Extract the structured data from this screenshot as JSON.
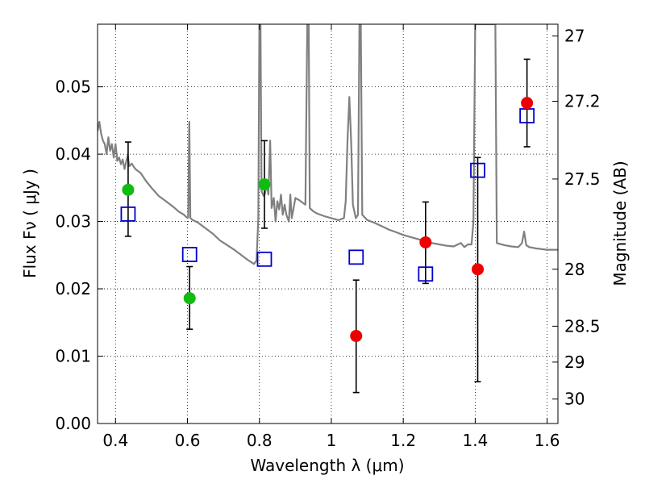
{
  "chart_data": {
    "type": "scatter",
    "title": "",
    "xlabel": "Wavelength  λ (μm)",
    "ylabel": "Flux  Fν  ( μJy )",
    "ylabel_right": "Magnitude (AB)",
    "xlim": [
      0.35,
      1.63
    ],
    "ylim": [
      0.0,
      0.0593
    ],
    "grid": true,
    "grid_style": "dotted",
    "x_ticks": [
      0.4,
      0.6,
      0.8,
      1.0,
      1.2,
      1.4,
      1.6
    ],
    "x_tick_labels": [
      "0.4",
      "0.6",
      "0.8",
      "1",
      "1.2",
      "1.4",
      "1.6"
    ],
    "y_ticks": [
      0.0,
      0.01,
      0.02,
      0.03,
      0.04,
      0.05
    ],
    "y_tick_labels": [
      "0.00",
      "0.01",
      "0.02",
      "0.03",
      "0.04",
      "0.05"
    ],
    "right_ticks": [
      {
        "label": "27",
        "flux": 0.05754
      },
      {
        "label": "27.2",
        "flux": 0.04786
      },
      {
        "label": "27.5",
        "flux": 0.03631
      },
      {
        "label": "28",
        "flux": 0.02291
      },
      {
        "label": "28.5",
        "flux": 0.01445
      },
      {
        "label": "29",
        "flux": 0.00912
      },
      {
        "label": "30",
        "flux": 0.00363
      }
    ],
    "series": [
      {
        "kind": "model-spectrum",
        "color": "#808080",
        "points": [
          [
            0.35,
            0.0434
          ],
          [
            0.355,
            0.0448
          ],
          [
            0.36,
            0.043
          ],
          [
            0.365,
            0.042
          ],
          [
            0.37,
            0.0415
          ],
          [
            0.375,
            0.04
          ],
          [
            0.38,
            0.0425
          ],
          [
            0.385,
            0.0405
          ],
          [
            0.39,
            0.0415
          ],
          [
            0.395,
            0.0395
          ],
          [
            0.4,
            0.0415
          ],
          [
            0.405,
            0.039
          ],
          [
            0.41,
            0.0395
          ],
          [
            0.415,
            0.0385
          ],
          [
            0.42,
            0.0392
          ],
          [
            0.425,
            0.0378
          ],
          [
            0.43,
            0.039
          ],
          [
            0.434,
            0.0398
          ],
          [
            0.438,
            0.0382
          ],
          [
            0.445,
            0.0386
          ],
          [
            0.455,
            0.0378
          ],
          [
            0.47,
            0.0372
          ],
          [
            0.485,
            0.036
          ],
          [
            0.5,
            0.035
          ],
          [
            0.52,
            0.0338
          ],
          [
            0.54,
            0.033
          ],
          [
            0.56,
            0.0322
          ],
          [
            0.575,
            0.0315
          ],
          [
            0.59,
            0.031
          ],
          [
            0.598,
            0.0306
          ],
          [
            0.602,
            0.0306
          ],
          [
            0.605,
            0.0448
          ],
          [
            0.608,
            0.0305
          ],
          [
            0.615,
            0.0302
          ],
          [
            0.63,
            0.0298
          ],
          [
            0.65,
            0.029
          ],
          [
            0.67,
            0.0282
          ],
          [
            0.69,
            0.0272
          ],
          [
            0.71,
            0.0265
          ],
          [
            0.73,
            0.0258
          ],
          [
            0.75,
            0.025
          ],
          [
            0.77,
            0.0242
          ],
          [
            0.785,
            0.0237
          ],
          [
            0.792,
            0.0242
          ],
          [
            0.797,
            0.0305
          ],
          [
            0.8,
            0.0593
          ],
          [
            0.803,
            0.0593
          ],
          [
            0.806,
            0.0345
          ],
          [
            0.812,
            0.0338
          ],
          [
            0.816,
            0.0342
          ],
          [
            0.82,
            0.036
          ],
          [
            0.825,
            0.034
          ],
          [
            0.83,
            0.042
          ],
          [
            0.834,
            0.032
          ],
          [
            0.84,
            0.0335
          ],
          [
            0.845,
            0.03
          ],
          [
            0.85,
            0.033
          ],
          [
            0.855,
            0.0318
          ],
          [
            0.86,
            0.034
          ],
          [
            0.865,
            0.031
          ],
          [
            0.87,
            0.0325
          ],
          [
            0.875,
            0.031
          ],
          [
            0.882,
            0.03
          ],
          [
            0.886,
            0.034
          ],
          [
            0.89,
            0.0305
          ],
          [
            0.9,
            0.0335
          ],
          [
            0.91,
            0.0332
          ],
          [
            0.92,
            0.0328
          ],
          [
            0.928,
            0.0325
          ],
          [
            0.933,
            0.0593
          ],
          [
            0.937,
            0.0593
          ],
          [
            0.94,
            0.032
          ],
          [
            0.95,
            0.0315
          ],
          [
            0.96,
            0.0312
          ],
          [
            0.98,
            0.0308
          ],
          [
            1.0,
            0.0305
          ],
          [
            1.02,
            0.0302
          ],
          [
            1.035,
            0.0305
          ],
          [
            1.04,
            0.033
          ],
          [
            1.045,
            0.042
          ],
          [
            1.05,
            0.0485
          ],
          [
            1.055,
            0.042
          ],
          [
            1.06,
            0.0325
          ],
          [
            1.068,
            0.0305
          ],
          [
            1.074,
            0.031
          ],
          [
            1.078,
            0.0593
          ],
          [
            1.082,
            0.0593
          ],
          [
            1.086,
            0.031
          ],
          [
            1.1,
            0.0302
          ],
          [
            1.12,
            0.0298
          ],
          [
            1.14,
            0.0293
          ],
          [
            1.16,
            0.0288
          ],
          [
            1.18,
            0.0284
          ],
          [
            1.2,
            0.028
          ],
          [
            1.22,
            0.0277
          ],
          [
            1.24,
            0.0274
          ],
          [
            1.26,
            0.0271
          ],
          [
            1.28,
            0.0268
          ],
          [
            1.3,
            0.0266
          ],
          [
            1.32,
            0.0264
          ],
          [
            1.34,
            0.0263
          ],
          [
            1.36,
            0.0268
          ],
          [
            1.37,
            0.0262
          ],
          [
            1.38,
            0.0266
          ],
          [
            1.39,
            0.0266
          ],
          [
            1.395,
            0.03
          ],
          [
            1.4,
            0.0593
          ],
          [
            1.456,
            0.0593
          ],
          [
            1.46,
            0.0268
          ],
          [
            1.48,
            0.0265
          ],
          [
            1.5,
            0.0263
          ],
          [
            1.52,
            0.0262
          ],
          [
            1.53,
            0.0268
          ],
          [
            1.536,
            0.0285
          ],
          [
            1.542,
            0.0265
          ],
          [
            1.55,
            0.0262
          ],
          [
            1.57,
            0.026
          ],
          [
            1.6,
            0.0258
          ],
          [
            1.63,
            0.0258
          ]
        ]
      },
      {
        "kind": "model-photometry",
        "marker": "open-square",
        "color": "#0000cc",
        "points": [
          [
            0.435,
            0.0311
          ],
          [
            0.606,
            0.0251
          ],
          [
            0.814,
            0.0244
          ],
          [
            1.069,
            0.0247
          ],
          [
            1.262,
            0.0222
          ],
          [
            1.407,
            0.0376
          ],
          [
            1.544,
            0.0457
          ]
        ]
      },
      {
        "kind": "observed-photometry",
        "marker": "filled-circle",
        "points": [
          {
            "x": 0.435,
            "y": 0.0347,
            "err_low": 0.0278,
            "err_high": 0.0418,
            "color": "#11bb11"
          },
          {
            "x": 0.606,
            "y": 0.0186,
            "err_low": 0.014,
            "err_high": 0.0233,
            "color": "#11bb11"
          },
          {
            "x": 0.814,
            "y": 0.0355,
            "err_low": 0.029,
            "err_high": 0.042,
            "color": "#11bb11"
          },
          {
            "x": 1.069,
            "y": 0.013,
            "err_low": 0.0046,
            "err_high": 0.0213,
            "color": "#ee0000"
          },
          {
            "x": 1.262,
            "y": 0.0269,
            "err_low": 0.0208,
            "err_high": 0.0329,
            "color": "#ee0000"
          },
          {
            "x": 1.407,
            "y": 0.0229,
            "err_low": 0.0062,
            "err_high": 0.0395,
            "color": "#ee0000"
          },
          {
            "x": 1.544,
            "y": 0.0476,
            "err_low": 0.0411,
            "err_high": 0.0541,
            "color": "#ee0000"
          }
        ]
      }
    ]
  }
}
